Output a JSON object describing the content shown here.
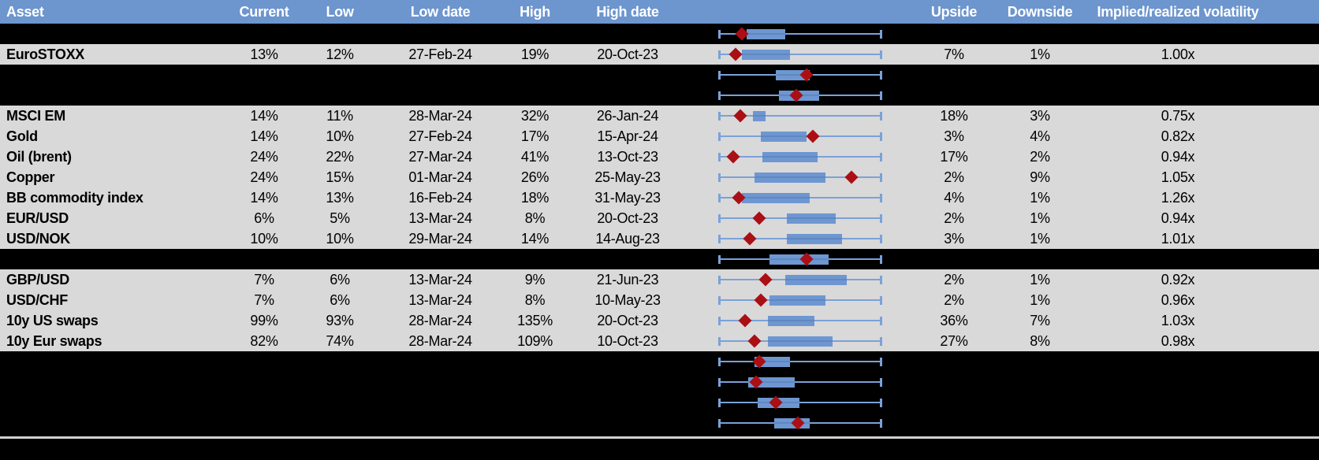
{
  "colors": {
    "header_bg": "#6d95ce",
    "row_bg": "#d9d9d9",
    "hidden_bg": "#000000",
    "box": "#6e96d1",
    "whisker": "#7ba1d8",
    "box_line": "#5e88c0",
    "marker": "#a90f14",
    "divider": "#cfcfcf"
  },
  "chart_data": {
    "type": "table",
    "title": "Implied volatility vs 52-week range (table with box-and-whisker charts)",
    "columns": [
      "Asset",
      "Current",
      "Low",
      "Low date",
      "High",
      "High date",
      "",
      "Upside",
      "Downside",
      "Implied/realized volatility"
    ],
    "boxplot_legend": {
      "whisker": "low-to-high 52w range, normalized 0-1 across full track",
      "box": "inner band of range (normalized start/end)",
      "diamond": "current level within low-high range (normalized)"
    },
    "rows": [
      {
        "hidden": true,
        "label": "",
        "current": "",
        "low": "",
        "low_date": "",
        "high": "",
        "high_date": "",
        "upside": "",
        "downside": "",
        "implied": "",
        "box": [
          0.17,
          0.41
        ],
        "marker": 0.14
      },
      {
        "hidden": false,
        "label": "EuroSTOXX",
        "current": "13%",
        "low": "12%",
        "low_date": "27-Feb-24",
        "high": "19%",
        "high_date": "20-Oct-23",
        "upside": "7%",
        "downside": "1%",
        "implied": "1.00x",
        "box": [
          0.14,
          0.44
        ],
        "marker": 0.1
      },
      {
        "hidden": true,
        "label": "",
        "current": "",
        "low": "",
        "low_date": "",
        "high": "",
        "high_date": "",
        "upside": "",
        "downside": "",
        "implied": "",
        "box": [
          0.35,
          0.56
        ],
        "marker": 0.54
      },
      {
        "hidden": true,
        "label": "",
        "current": "",
        "low": "",
        "low_date": "",
        "high": "",
        "high_date": "",
        "upside": "",
        "downside": "",
        "implied": "",
        "box": [
          0.37,
          0.62
        ],
        "marker": 0.48
      },
      {
        "hidden": false,
        "label": "MSCI EM",
        "current": "14%",
        "low": "11%",
        "low_date": "28-Mar-24",
        "high": "32%",
        "high_date": "26-Jan-24",
        "upside": "18%",
        "downside": "3%",
        "implied": "0.75x",
        "box": [
          0.21,
          0.29
        ],
        "marker": 0.13
      },
      {
        "hidden": false,
        "label": "Gold",
        "current": "14%",
        "low": "10%",
        "low_date": "27-Feb-24",
        "high": "17%",
        "high_date": "15-Apr-24",
        "upside": "3%",
        "downside": "4%",
        "implied": "0.82x",
        "box": [
          0.26,
          0.54
        ],
        "marker": 0.58
      },
      {
        "hidden": false,
        "label": "Oil (brent)",
        "current": "24%",
        "low": "22%",
        "low_date": "27-Mar-24",
        "high": "41%",
        "high_date": "13-Oct-23",
        "upside": "17%",
        "downside": "2%",
        "implied": "0.94x",
        "box": [
          0.27,
          0.61
        ],
        "marker": 0.09
      },
      {
        "hidden": false,
        "label": "Copper",
        "current": "24%",
        "low": "15%",
        "low_date": "01-Mar-24",
        "high": "26%",
        "high_date": "25-May-23",
        "upside": "2%",
        "downside": "9%",
        "implied": "1.05x",
        "box": [
          0.22,
          0.66
        ],
        "marker": 0.82
      },
      {
        "hidden": false,
        "label": "BB commodity index",
        "current": "14%",
        "low": "13%",
        "low_date": "16-Feb-24",
        "high": "18%",
        "high_date": "31-May-23",
        "upside": "4%",
        "downside": "1%",
        "implied": "1.26x",
        "box": [
          0.14,
          0.56
        ],
        "marker": 0.12
      },
      {
        "hidden": false,
        "label": "EUR/USD",
        "current": "6%",
        "low": "5%",
        "low_date": "13-Mar-24",
        "high": "8%",
        "high_date": "20-Oct-23",
        "upside": "2%",
        "downside": "1%",
        "implied": "0.94x",
        "box": [
          0.42,
          0.72
        ],
        "marker": 0.25
      },
      {
        "hidden": false,
        "label": "USD/NOK",
        "current": "10%",
        "low": "10%",
        "low_date": "29-Mar-24",
        "high": "14%",
        "high_date": "14-Aug-23",
        "upside": "3%",
        "downside": "1%",
        "implied": "1.01x",
        "box": [
          0.42,
          0.76
        ],
        "marker": 0.19
      },
      {
        "hidden": true,
        "label": "",
        "current": "",
        "low": "",
        "low_date": "",
        "high": "",
        "high_date": "",
        "upside": "",
        "downside": "",
        "implied": "",
        "box": [
          0.31,
          0.68
        ],
        "marker": 0.54
      },
      {
        "hidden": false,
        "label": "GBP/USD",
        "current": "7%",
        "low": "6%",
        "low_date": "13-Mar-24",
        "high": "9%",
        "high_date": "21-Jun-23",
        "upside": "2%",
        "downside": "1%",
        "implied": "0.92x",
        "box": [
          0.41,
          0.79
        ],
        "marker": 0.29
      },
      {
        "hidden": false,
        "label": "USD/CHF",
        "current": "7%",
        "low": "6%",
        "low_date": "13-Mar-24",
        "high": "8%",
        "high_date": "10-May-23",
        "upside": "2%",
        "downside": "1%",
        "implied": "0.96x",
        "box": [
          0.31,
          0.66
        ],
        "marker": 0.26
      },
      {
        "hidden": false,
        "label": "10y US swaps",
        "current": "99%",
        "low": "93%",
        "low_date": "28-Mar-24",
        "high": "135%",
        "high_date": "20-Oct-23",
        "upside": "36%",
        "downside": "7%",
        "implied": "1.03x",
        "box": [
          0.3,
          0.59
        ],
        "marker": 0.16
      },
      {
        "hidden": false,
        "label": "10y Eur swaps",
        "current": "82%",
        "low": "74%",
        "low_date": "28-Mar-24",
        "high": "109%",
        "high_date": "10-Oct-23",
        "upside": "27%",
        "downside": "8%",
        "implied": "0.98x",
        "box": [
          0.3,
          0.7
        ],
        "marker": 0.22
      },
      {
        "hidden": true,
        "label": "",
        "current": "",
        "low": "",
        "low_date": "",
        "high": "",
        "high_date": "",
        "upside": "",
        "downside": "",
        "implied": "",
        "box": [
          0.22,
          0.44
        ],
        "marker": 0.25
      },
      {
        "hidden": true,
        "label": "",
        "current": "",
        "low": "",
        "low_date": "",
        "high": "",
        "high_date": "",
        "upside": "",
        "downside": "",
        "implied": "",
        "box": [
          0.18,
          0.47
        ],
        "marker": 0.23
      },
      {
        "hidden": true,
        "label": "",
        "current": "",
        "low": "",
        "low_date": "",
        "high": "",
        "high_date": "",
        "upside": "",
        "downside": "",
        "implied": "",
        "box": [
          0.24,
          0.5
        ],
        "marker": 0.35
      },
      {
        "hidden": true,
        "label": "",
        "current": "",
        "low": "",
        "low_date": "",
        "high": "",
        "high_date": "",
        "upside": "",
        "downside": "",
        "implied": "",
        "box": [
          0.34,
          0.56
        ],
        "marker": 0.49
      }
    ]
  }
}
